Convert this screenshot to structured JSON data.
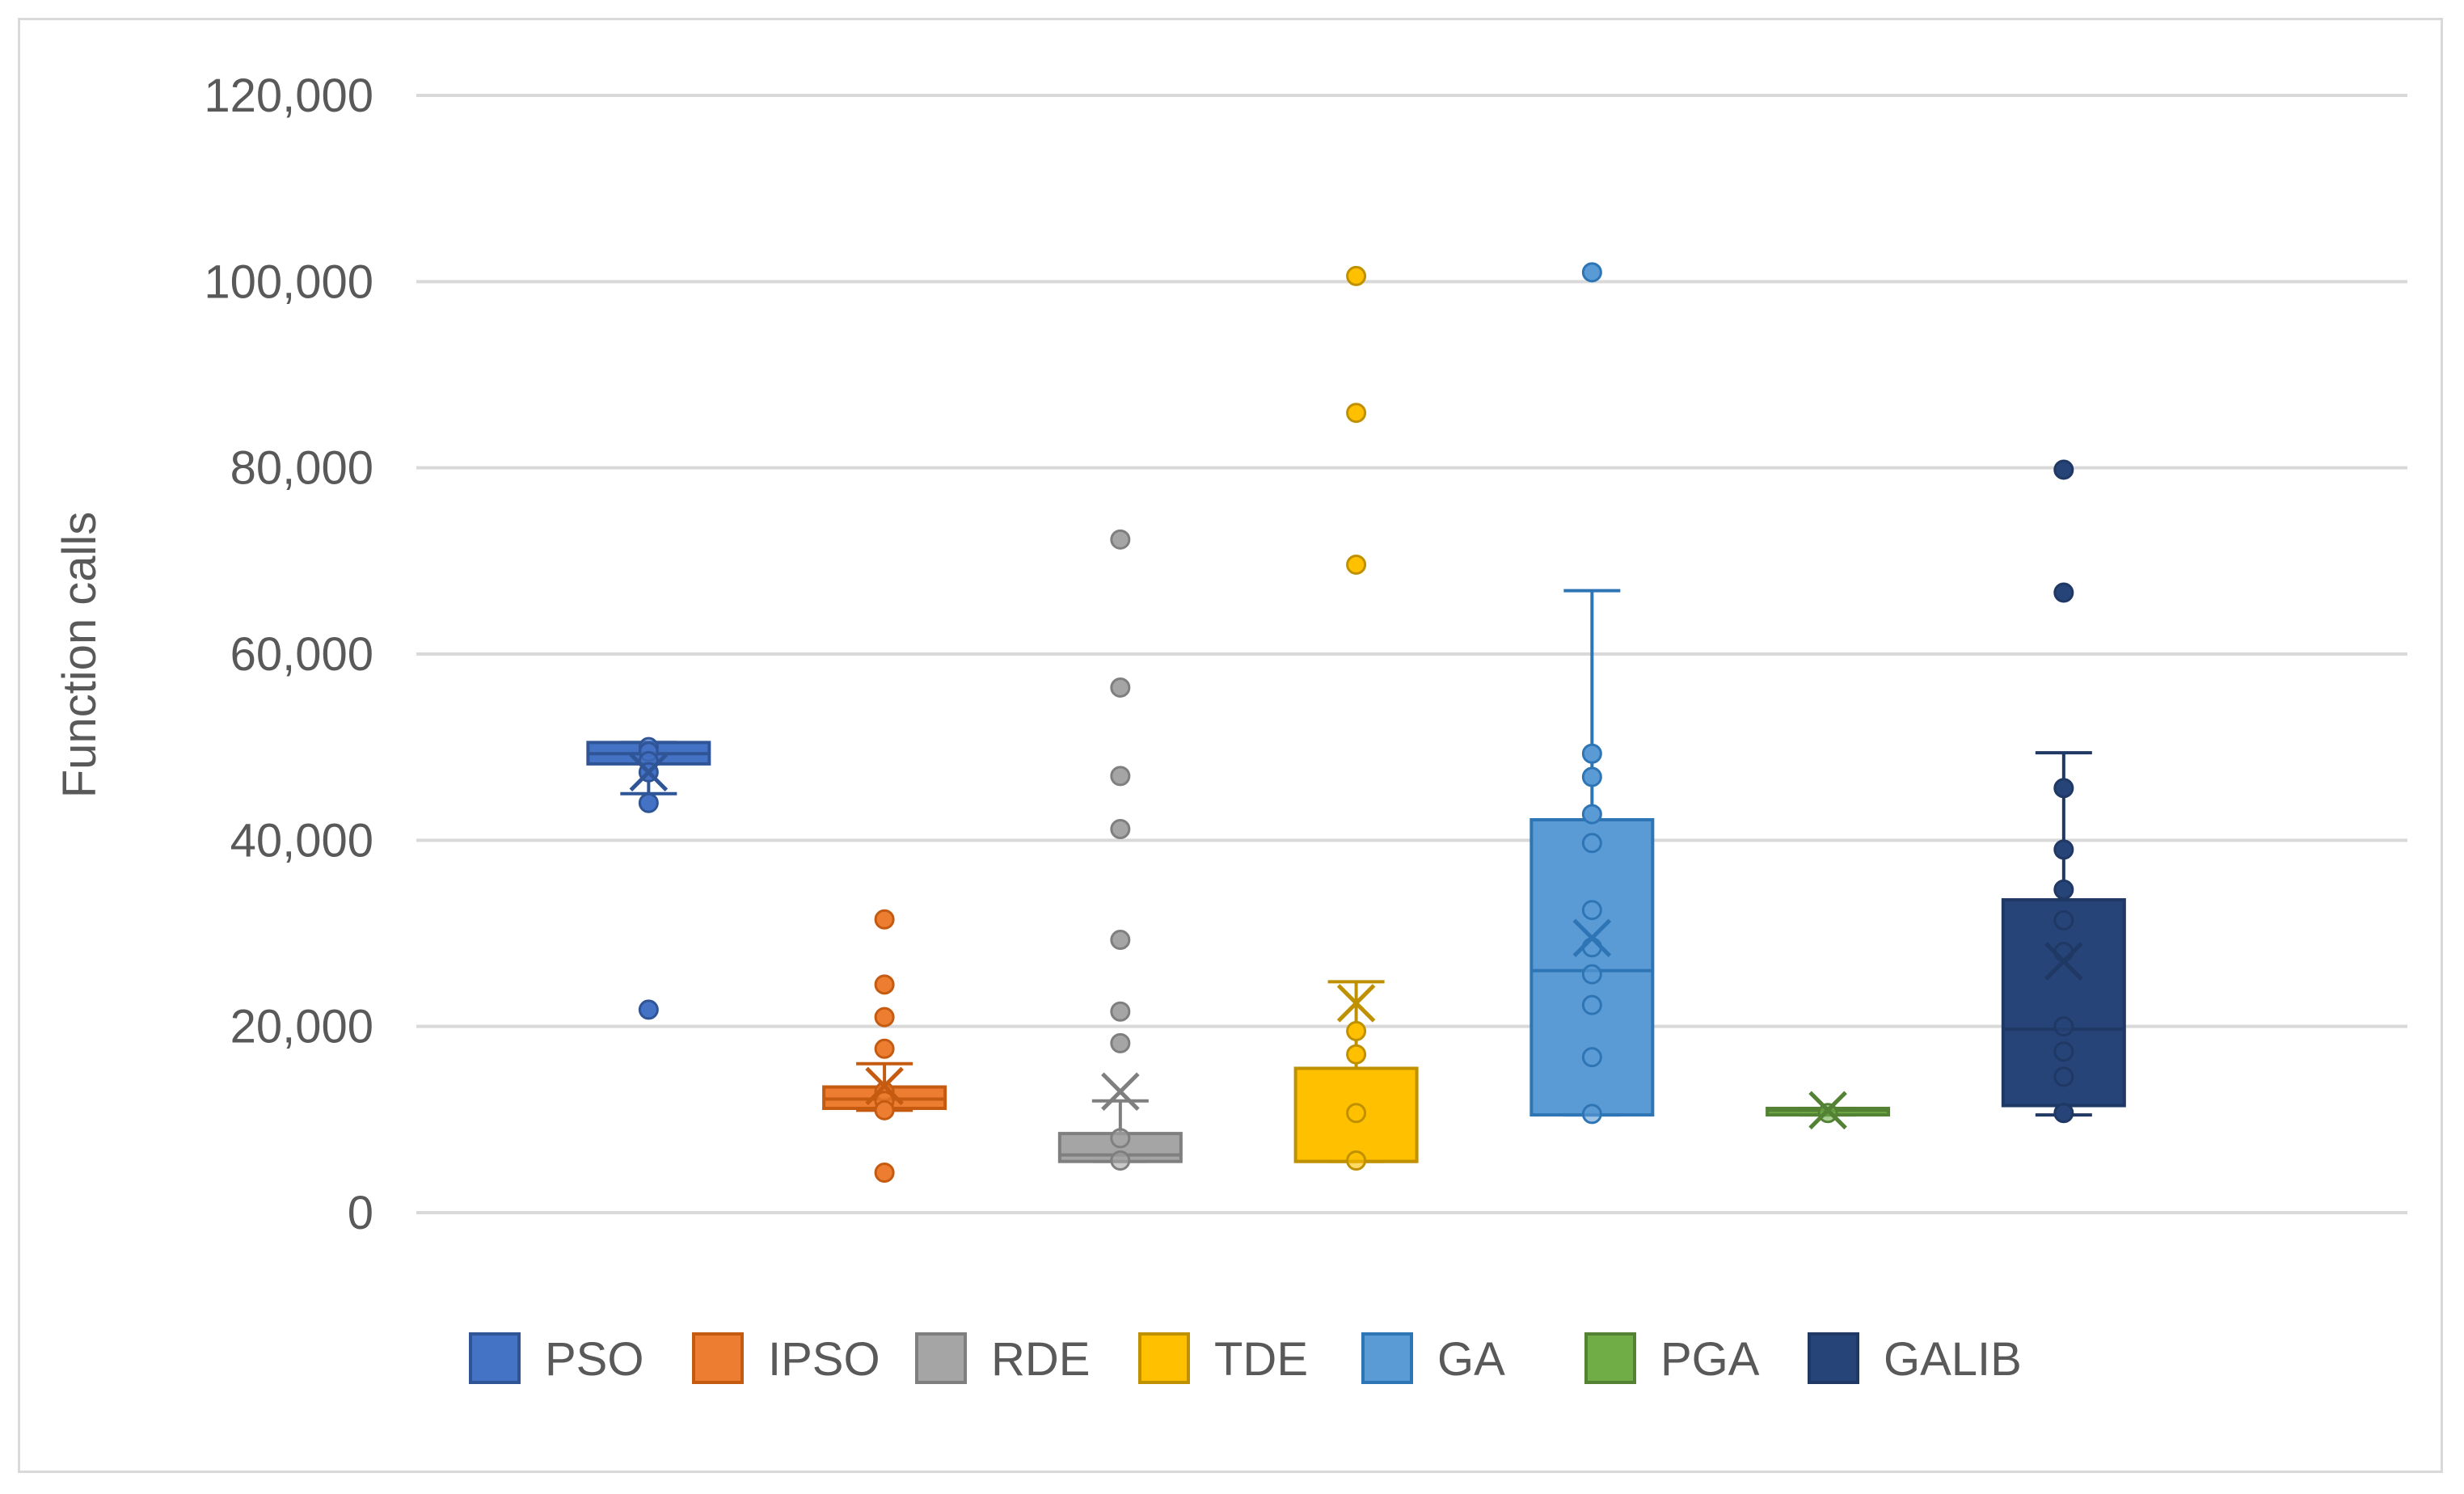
{
  "chart_data": {
    "type": "box",
    "ylabel": "Function calls",
    "xlabel": "",
    "ylim": [
      0,
      120000
    ],
    "y_ticks": [
      "0",
      "20,000",
      "40,000",
      "60,000",
      "80,000",
      "100,000",
      "120,000"
    ],
    "y_tick_values": [
      0,
      20000,
      40000,
      60000,
      80000,
      100000,
      120000
    ],
    "grid": true,
    "legend_position": "bottom",
    "series": [
      {
        "name": "PSO",
        "color": "#4472c4",
        "edge": "#2f5597",
        "whisker_low": 45000,
        "q1": 48200,
        "median": 49300,
        "q3": 50500,
        "whisker_high": 50500,
        "mean": 47300,
        "points": [
          50000,
          49500,
          48500,
          47300,
          44000,
          21800
        ]
      },
      {
        "name": "IPSO",
        "color": "#ed7d31",
        "edge": "#c55a11",
        "whisker_low": 11000,
        "q1": 11200,
        "median": 12200,
        "q3": 13500,
        "whisker_high": 16000,
        "mean": 13600,
        "points": [
          31500,
          24500,
          21000,
          17600,
          13000,
          12000,
          11000,
          4300
        ]
      },
      {
        "name": "RDE",
        "color": "#a5a5a5",
        "edge": "#7f7f7f",
        "whisker_low": 5500,
        "q1": 5500,
        "median": 6200,
        "q3": 8500,
        "whisker_high": 12000,
        "mean": 13000,
        "points": [
          72300,
          56400,
          46900,
          41200,
          29300,
          21600,
          18200,
          8000,
          5600
        ]
      },
      {
        "name": "TDE",
        "color": "#ffc000",
        "edge": "#bf9000",
        "whisker_low": 5500,
        "q1": 5500,
        "median": 5500,
        "q3": 15500,
        "whisker_high": 24800,
        "mean": 22500,
        "points": [
          100600,
          85900,
          69600,
          19500,
          17000,
          10700,
          5600
        ]
      },
      {
        "name": "GA",
        "color": "#5b9bd5",
        "edge": "#2e75b6",
        "whisker_low": 10500,
        "q1": 10500,
        "median": 26000,
        "q3": 42200,
        "whisker_high": 66800,
        "mean": 29500,
        "points": [
          101000,
          49300,
          46800,
          42800,
          39700,
          32500,
          28500,
          25600,
          22300,
          16700,
          10600
        ]
      },
      {
        "name": "PGA",
        "color": "#70ad47",
        "edge": "#548235",
        "whisker_low": 10500,
        "q1": 10500,
        "median": 11000,
        "q3": 11200,
        "whisker_high": 11200,
        "mean": 11000,
        "points": [
          10700
        ]
      },
      {
        "name": "GALIB",
        "color": "#264478",
        "edge": "#1f3864",
        "whisker_low": 10500,
        "q1": 11500,
        "median": 19700,
        "q3": 33600,
        "whisker_high": 49400,
        "mean": 27000,
        "points": [
          79800,
          66600,
          45600,
          39000,
          34700,
          31400,
          28000,
          20000,
          17300,
          14600,
          10700
        ]
      }
    ]
  }
}
